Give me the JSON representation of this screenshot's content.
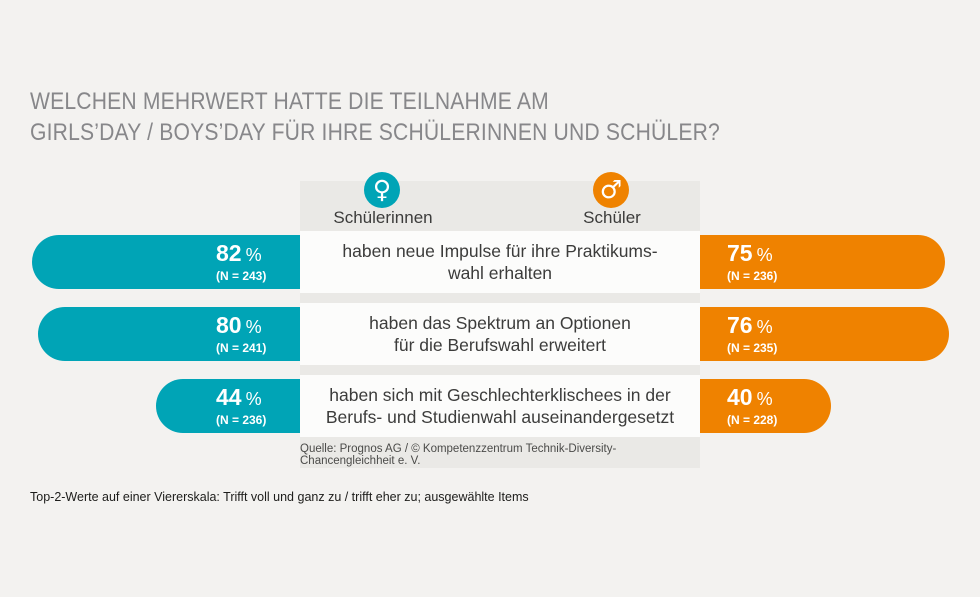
{
  "title": {
    "line1": "WELCHEN MEHRWERT HATTE DIE TEILNAHME AM",
    "line2": "GIRLS’DAY / BOYS’DAY FÜR IHRE SCHÜLERINNEN UND SCHÜLER?"
  },
  "legend": {
    "female": {
      "label": "Schülerinnen",
      "symbol": "♀",
      "color": "#00a4b6"
    },
    "male": {
      "label": "Schüler",
      "symbol": "♂",
      "color": "#ef8200"
    }
  },
  "labels": {
    "percent_sign": "%"
  },
  "rows": [
    {
      "text1": "haben neue Impulse für ihre Praktikums-",
      "text2": "wahl erhalten",
      "left": {
        "value": 82,
        "pct": "82",
        "n": "(N = 243)"
      },
      "right": {
        "value": 75,
        "pct": "75",
        "n": "(N = 236)"
      }
    },
    {
      "text1": "haben das Spektrum an Optionen",
      "text2": "für die Berufswahl erweitert",
      "left": {
        "value": 80,
        "pct": "80",
        "n": "(N = 241)"
      },
      "right": {
        "value": 76,
        "pct": "76",
        "n": "(N = 235)"
      }
    },
    {
      "text1": "haben sich mit Geschlechterklischees in der",
      "text2": "Berufs- und Studienwahl auseinandergesetzt",
      "left": {
        "value": 44,
        "pct": "44",
        "n": "(N = 236)"
      },
      "right": {
        "value": 40,
        "pct": "40",
        "n": "(N = 228)"
      }
    }
  ],
  "source": "Quelle: Prognos AG / © Kompetenzzentrum Technik-Diversity-Chancengleichheit e. V.",
  "footnote": "Top-2-Werte auf einer Viererskala: Trifft voll und ganz zu / trifft eher zu; ausgewählte Items",
  "chart_data": {
    "type": "bar",
    "orientation": "horizontal-mirrored",
    "title": "Welchen Mehrwert hatte die Teilnahme am Girls’Day / Boys’Day für Ihre Schülerinnen und Schüler?",
    "categories": [
      "haben neue Impulse für ihre Praktikumswahl erhalten",
      "haben das Spektrum an Optionen für die Berufswahl erweitert",
      "haben sich mit Geschlechterklischees in der Berufs- und Studienwahl auseinandergesetzt"
    ],
    "series": [
      {
        "name": "Schülerinnen",
        "values": [
          82,
          80,
          44
        ],
        "sample_sizes": [
          243,
          241,
          236
        ],
        "color": "#00a4b6"
      },
      {
        "name": "Schüler",
        "values": [
          75,
          76,
          40
        ],
        "sample_sizes": [
          236,
          235,
          228
        ],
        "color": "#ef8200"
      }
    ],
    "unit": "%",
    "value_range": [
      0,
      100
    ],
    "legend_position": "top-center",
    "grid": false,
    "source": "Quelle: Prognos AG / © Kompetenzzentrum Technik-Diversity-Chancengleichheit e. V.",
    "footnote": "Top-2-Werte auf einer Viererskala: Trifft voll und ganz zu / trifft eher zu; ausgewählte Items"
  }
}
